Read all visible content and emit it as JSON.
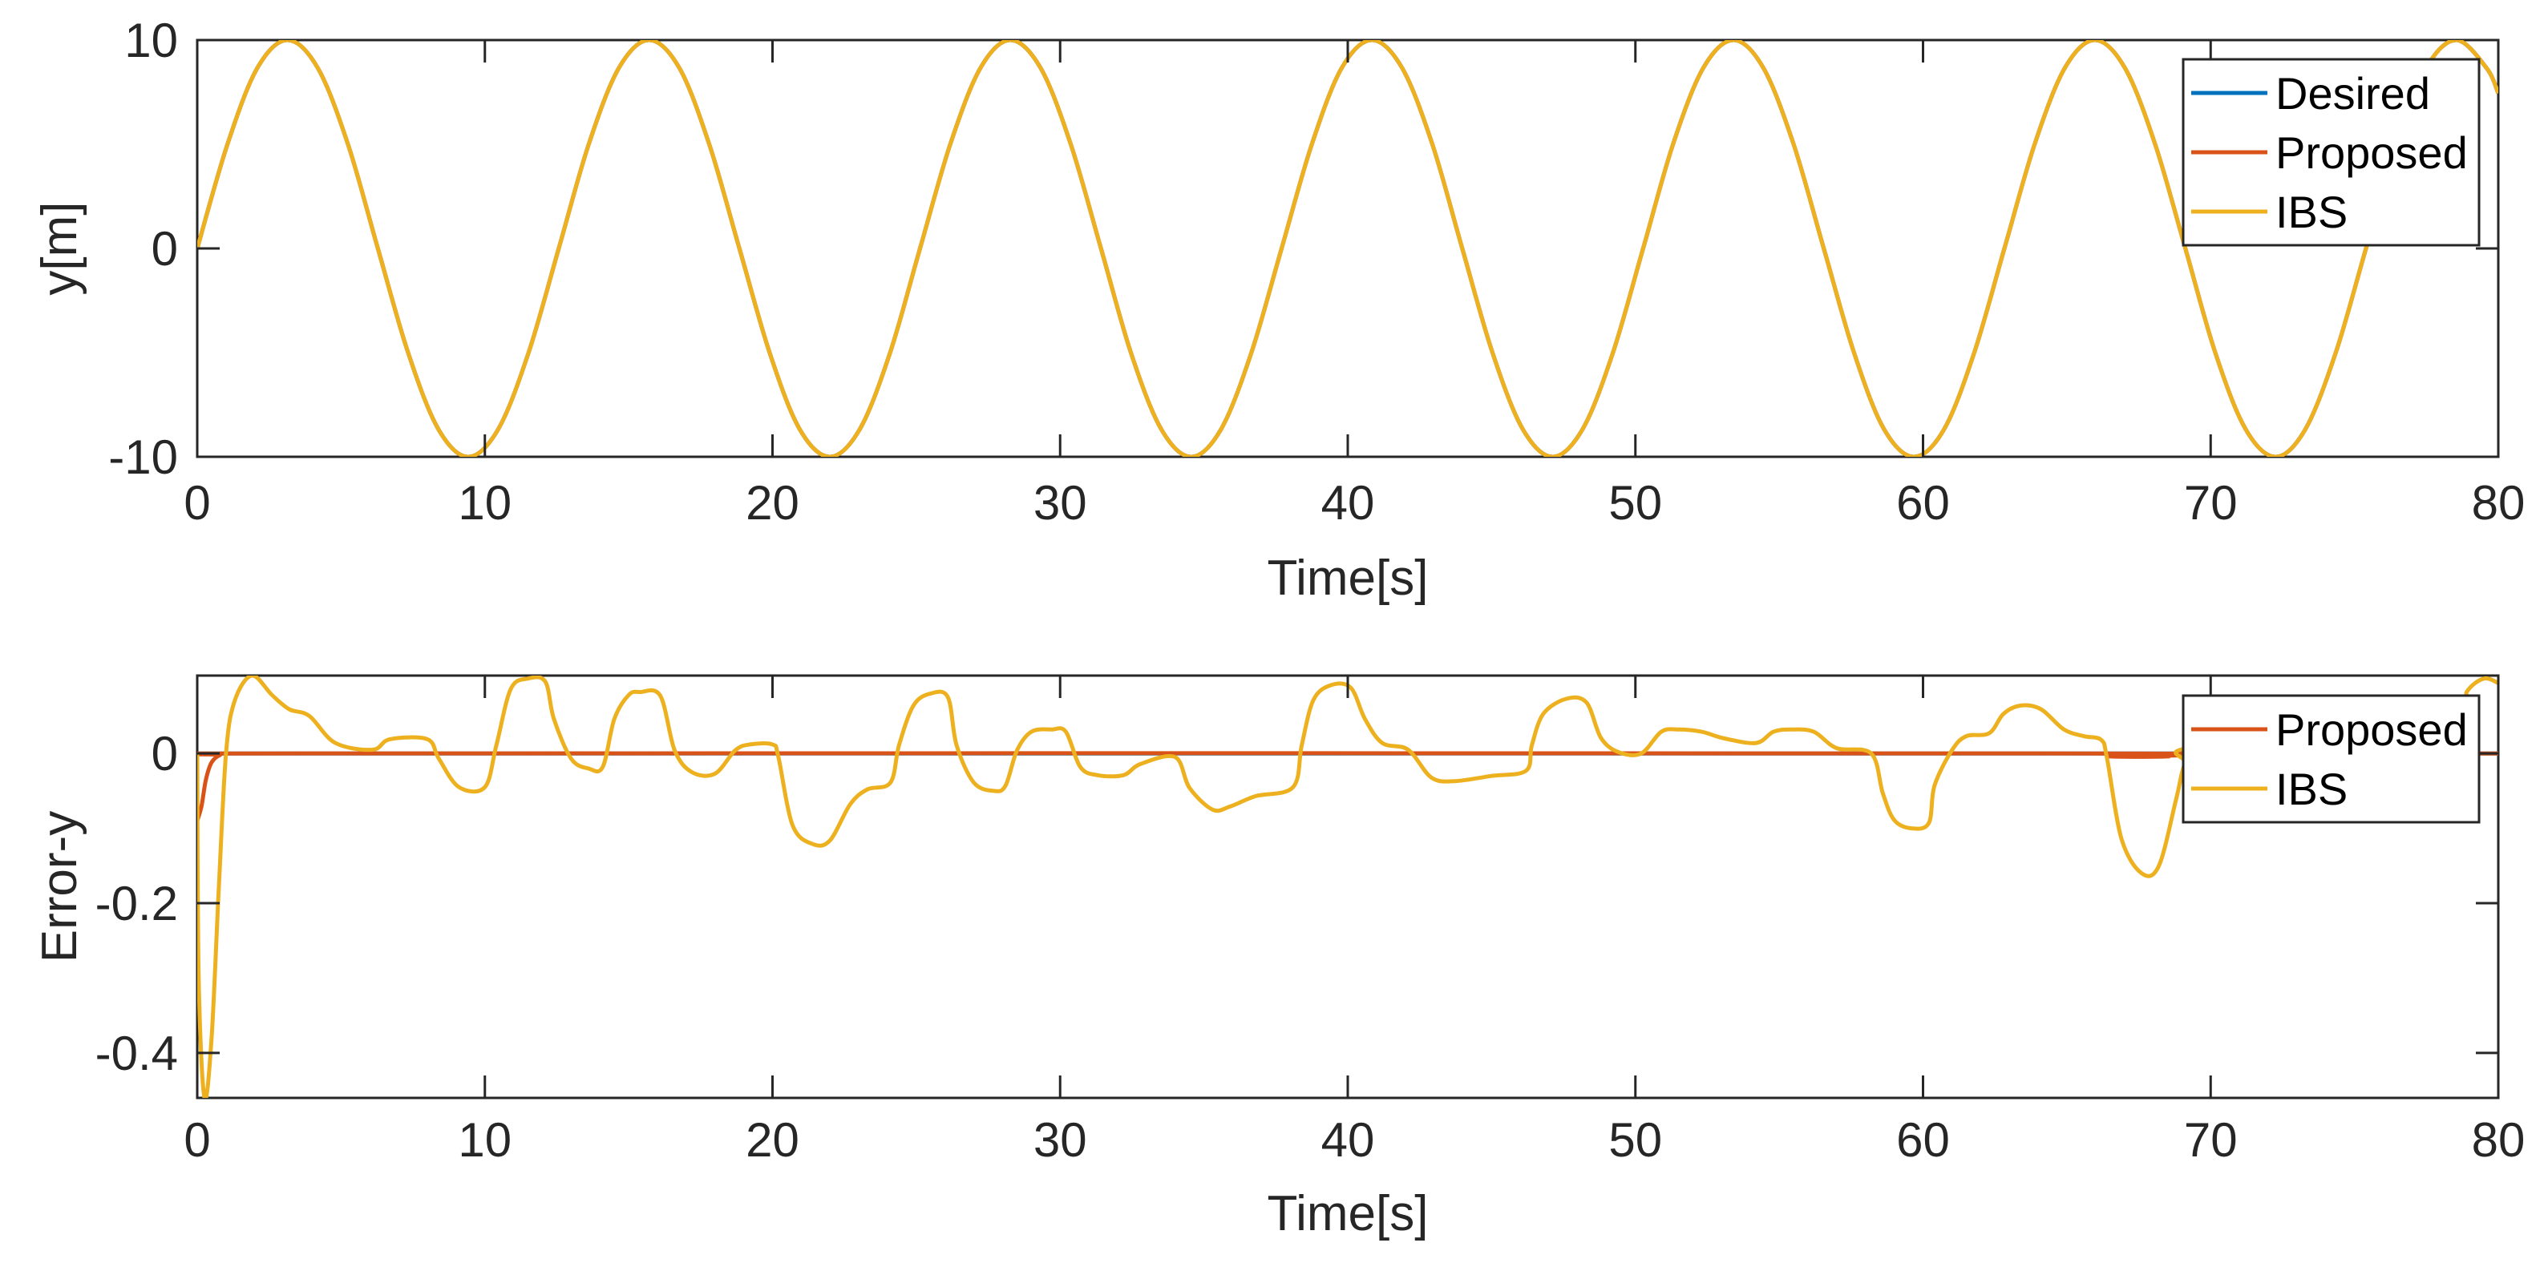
{
  "chart_data": [
    {
      "type": "line",
      "xlabel": "Time[s]",
      "ylabel": "y[m]",
      "xlim": [
        0,
        80
      ],
      "ylim": [
        -10,
        10
      ],
      "xticks": [
        0,
        10,
        20,
        30,
        40,
        50,
        60,
        70,
        80
      ],
      "xtick_labels": [
        "0",
        "10",
        "20",
        "30",
        "40",
        "50",
        "60",
        "70",
        "80"
      ],
      "yticks": [
        -10,
        0,
        10
      ],
      "ytick_labels": [
        "-10",
        "0",
        "10"
      ],
      "grid": false,
      "legend_position": "top-right",
      "series": [
        {
          "name": "Desired",
          "color": "#0072BD",
          "legend": true,
          "x": [
            0,
            1.05,
            2.09,
            3.14,
            4.19,
            5.24,
            6.28,
            7.33,
            8.38,
            9.42,
            10.47,
            11.52,
            12.57,
            13.61,
            14.66,
            15.71,
            16.76,
            17.8,
            18.85,
            19.9,
            20.94,
            21.99,
            23.04,
            24.09,
            25.13,
            26.18,
            27.23,
            28.27,
            29.32,
            30.37,
            31.42,
            32.46,
            33.51,
            34.56,
            35.6,
            36.65,
            37.7,
            38.75,
            39.79,
            40.84,
            41.89,
            42.94,
            43.98,
            45.03,
            46.08,
            47.12,
            48.17,
            49.22,
            50.27,
            51.31,
            52.36,
            53.41,
            54.45,
            55.5,
            56.55,
            57.6,
            58.64,
            59.69,
            60.74,
            61.78,
            62.83,
            63.88,
            64.93,
            65.97,
            67.02,
            68.07,
            69.12,
            70.16,
            71.21,
            72.26,
            73.3,
            74.35,
            75.4,
            76.45,
            77.49,
            78.54,
            79.59,
            80
          ],
          "y": [
            0,
            5,
            8.66,
            10,
            8.66,
            5,
            0,
            -5,
            -8.66,
            -10,
            -8.66,
            -5,
            0,
            5,
            8.66,
            10,
            8.66,
            5,
            0,
            -5,
            -8.66,
            -10,
            -8.66,
            -5,
            0,
            5,
            8.66,
            10,
            8.66,
            5,
            0,
            -5,
            -8.66,
            -10,
            -8.66,
            -5,
            0,
            5,
            8.66,
            10,
            8.66,
            5,
            0,
            -5,
            -8.66,
            -10,
            -8.66,
            -5,
            0,
            5,
            8.66,
            10,
            8.66,
            5,
            0,
            -5,
            -8.66,
            -10,
            -8.66,
            -5,
            0,
            5,
            8.66,
            10,
            8.66,
            5,
            0,
            -5,
            -8.66,
            -10,
            -8.66,
            -5,
            0,
            5,
            8.66,
            10,
            8.66,
            7.45
          ]
        },
        {
          "name": "Proposed",
          "color": "#D95319",
          "legend": true,
          "x": [
            0,
            1.05,
            2.09,
            3.14,
            4.19,
            5.24,
            6.28,
            7.33,
            8.38,
            9.42,
            10.47,
            11.52,
            12.57,
            13.61,
            14.66,
            15.71,
            16.76,
            17.8,
            18.85,
            19.9,
            20.94,
            21.99,
            23.04,
            24.09,
            25.13,
            26.18,
            27.23,
            28.27,
            29.32,
            30.37,
            31.42,
            32.46,
            33.51,
            34.56,
            35.6,
            36.65,
            37.7,
            38.75,
            39.79,
            40.84,
            41.89,
            42.94,
            43.98,
            45.03,
            46.08,
            47.12,
            48.17,
            49.22,
            50.27,
            51.31,
            52.36,
            53.41,
            54.45,
            55.5,
            56.55,
            57.6,
            58.64,
            59.69,
            60.74,
            61.78,
            62.83,
            63.88,
            64.93,
            65.97,
            67.02,
            68.07,
            69.12,
            70.16,
            71.21,
            72.26,
            73.3,
            74.35,
            75.4,
            76.45,
            77.49,
            78.54,
            79.59,
            80
          ],
          "y": [
            0,
            5,
            8.66,
            10,
            8.66,
            5,
            0,
            -5,
            -8.66,
            -10,
            -8.66,
            -5,
            0,
            5,
            8.66,
            10,
            8.66,
            5,
            0,
            -5,
            -8.66,
            -10,
            -8.66,
            -5,
            0,
            5,
            8.66,
            10,
            8.66,
            5,
            0,
            -5,
            -8.66,
            -10,
            -8.66,
            -5,
            0,
            5,
            8.66,
            10,
            8.66,
            5,
            0,
            -5,
            -8.66,
            -10,
            -8.66,
            -5,
            0,
            5,
            8.66,
            10,
            8.66,
            5,
            0,
            -5,
            -8.66,
            -10,
            -8.66,
            -5,
            0,
            5,
            8.66,
            10,
            8.66,
            5,
            0,
            -5,
            -8.66,
            -10,
            -8.66,
            -5,
            0,
            5,
            8.66,
            10,
            8.66,
            7.45
          ]
        },
        {
          "name": "IBS",
          "color": "#EDB120",
          "legend": true,
          "x": [
            0,
            1.05,
            2.09,
            3.14,
            4.19,
            5.24,
            6.28,
            7.33,
            8.38,
            9.42,
            10.47,
            11.52,
            12.57,
            13.61,
            14.66,
            15.71,
            16.76,
            17.8,
            18.85,
            19.9,
            20.94,
            21.99,
            23.04,
            24.09,
            25.13,
            26.18,
            27.23,
            28.27,
            29.32,
            30.37,
            31.42,
            32.46,
            33.51,
            34.56,
            35.6,
            36.65,
            37.7,
            38.75,
            39.79,
            40.84,
            41.89,
            42.94,
            43.98,
            45.03,
            46.08,
            47.12,
            48.17,
            49.22,
            50.27,
            51.31,
            52.36,
            53.41,
            54.45,
            55.5,
            56.55,
            57.6,
            58.64,
            59.69,
            60.74,
            61.78,
            62.83,
            63.88,
            64.93,
            65.97,
            67.02,
            68.07,
            69.12,
            70.16,
            71.21,
            72.26,
            73.3,
            74.35,
            75.4,
            76.45,
            77.49,
            78.54,
            79.59,
            80
          ],
          "y": [
            0,
            5,
            8.66,
            10,
            8.66,
            5,
            0,
            -5,
            -8.66,
            -10,
            -8.66,
            -5,
            0,
            5,
            8.66,
            10,
            8.66,
            5,
            0,
            -5,
            -8.66,
            -10,
            -8.66,
            -5,
            0,
            5,
            8.66,
            10,
            8.66,
            5,
            0,
            -5,
            -8.66,
            -10,
            -8.66,
            -5,
            0,
            5,
            8.66,
            10,
            8.66,
            5,
            0,
            -5,
            -8.66,
            -10,
            -8.66,
            -5,
            0,
            5,
            8.66,
            10,
            8.66,
            5,
            0,
            -5,
            -8.66,
            -10,
            -8.66,
            -5,
            0,
            5,
            8.66,
            10,
            8.66,
            5,
            0,
            -5,
            -8.66,
            -10,
            -8.66,
            -5,
            0,
            5,
            8.66,
            10,
            8.66,
            7.45
          ]
        }
      ]
    },
    {
      "type": "line",
      "xlabel": "Time[s]",
      "ylabel": "Error-y",
      "xlim": [
        0,
        80
      ],
      "ylim": [
        -0.46,
        0.104
      ],
      "xticks": [
        0,
        10,
        20,
        30,
        40,
        50,
        60,
        70,
        80
      ],
      "xtick_labels": [
        "0",
        "10",
        "20",
        "30",
        "40",
        "50",
        "60",
        "70",
        "80"
      ],
      "yticks": [
        -0.4,
        -0.2,
        0
      ],
      "ytick_labels": [
        "-0.4",
        "-0.2",
        "0"
      ],
      "grid": false,
      "legend_position": "top-right",
      "series": [
        {
          "name": "",
          "color": "#0072BD",
          "legend": false,
          "x": [
            0,
            80
          ],
          "y": [
            0,
            0
          ]
        },
        {
          "name": "Proposed",
          "color": "#D95319",
          "legend": true,
          "x": [
            0,
            0.15,
            0.3,
            0.5,
            0.8,
            1.2,
            66,
            66.5,
            68.5,
            69,
            80
          ],
          "y": [
            -0.09,
            -0.07,
            -0.035,
            -0.012,
            -0.002,
            0,
            0,
            -0.004,
            -0.004,
            0,
            0
          ]
        },
        {
          "name": "IBS",
          "color": "#EDB120",
          "legend": true,
          "x": [
            0,
            0.05,
            0.25,
            0.5,
            0.75,
            1.0,
            1.3,
            1.9,
            2.6,
            3.2,
            3.9,
            4.8,
            6.1,
            6.7,
            8.0,
            8.4,
            9.1,
            10.0,
            10.4,
            10.9,
            11.5,
            12.1,
            12.4,
            13.0,
            13.6,
            14.1,
            14.5,
            15.0,
            15.4,
            16.1,
            16.6,
            17.2,
            18.0,
            18.7,
            19.2,
            20.0,
            20.2,
            20.7,
            21.4,
            22.0,
            22.7,
            23.3,
            24.1,
            24.4,
            24.9,
            25.5,
            26.1,
            26.4,
            27.0,
            27.7,
            28.1,
            28.5,
            29.0,
            29.7,
            30.2,
            30.7,
            31.3,
            32.2,
            32.8,
            34.0,
            34.5,
            35.3,
            35.9,
            36.8,
            38.1,
            38.4,
            38.8,
            39.4,
            40.1,
            40.6,
            41.2,
            42.1,
            42.9,
            43.7,
            45.0,
            46.2,
            46.4,
            46.8,
            47.6,
            48.3,
            48.8,
            49.4,
            50.2,
            50.9,
            51.5,
            52.3,
            53.1,
            54.2,
            54.8,
            55.4,
            56.2,
            57.0,
            58.2,
            58.6,
            59.0,
            59.6,
            60.2,
            60.4,
            61.0,
            61.5,
            62.3,
            62.8,
            63.4,
            64.1,
            64.9,
            65.6,
            66.2,
            66.4,
            66.9,
            67.6,
            68.2,
            68.8,
            69.1,
            69.6,
            78.5,
            78.9,
            79.5,
            80
          ],
          "y": [
            0,
            -0.3,
            -0.46,
            -0.38,
            -0.18,
            0,
            0.07,
            0.104,
            0.078,
            0.059,
            0.05,
            0.014,
            0.005,
            0.019,
            0.019,
            -0.007,
            -0.045,
            -0.045,
            0.011,
            0.086,
            0.1,
            0.096,
            0.046,
            -0.007,
            -0.02,
            -0.018,
            0.046,
            0.078,
            0.082,
            0.077,
            0.004,
            -0.025,
            -0.027,
            0.004,
            0.012,
            0.012,
            -0.004,
            -0.096,
            -0.121,
            -0.116,
            -0.068,
            -0.048,
            -0.039,
            0.011,
            0.064,
            0.08,
            0.075,
            0.011,
            -0.039,
            -0.05,
            -0.043,
            0.004,
            0.029,
            0.032,
            0.029,
            -0.018,
            -0.029,
            -0.029,
            -0.014,
            -0.005,
            -0.046,
            -0.075,
            -0.071,
            -0.057,
            -0.045,
            0.011,
            0.071,
            0.091,
            0.088,
            0.046,
            0.014,
            0.005,
            -0.032,
            -0.037,
            -0.03,
            -0.023,
            0.011,
            0.053,
            0.073,
            0.068,
            0.021,
            0.002,
            0,
            0.029,
            0.032,
            0.029,
            0.02,
            0.014,
            0.029,
            0.032,
            0.029,
            0.007,
            0,
            -0.053,
            -0.089,
            -0.1,
            -0.093,
            -0.043,
            0.004,
            0.023,
            0.027,
            0.053,
            0.064,
            0.059,
            0.032,
            0.023,
            0.018,
            -0.007,
            -0.114,
            -0.16,
            -0.15,
            -0.061,
            -0.014,
            0.01,
            0.04,
            0.082,
            0.1,
            0.094
          ]
        }
      ]
    }
  ]
}
